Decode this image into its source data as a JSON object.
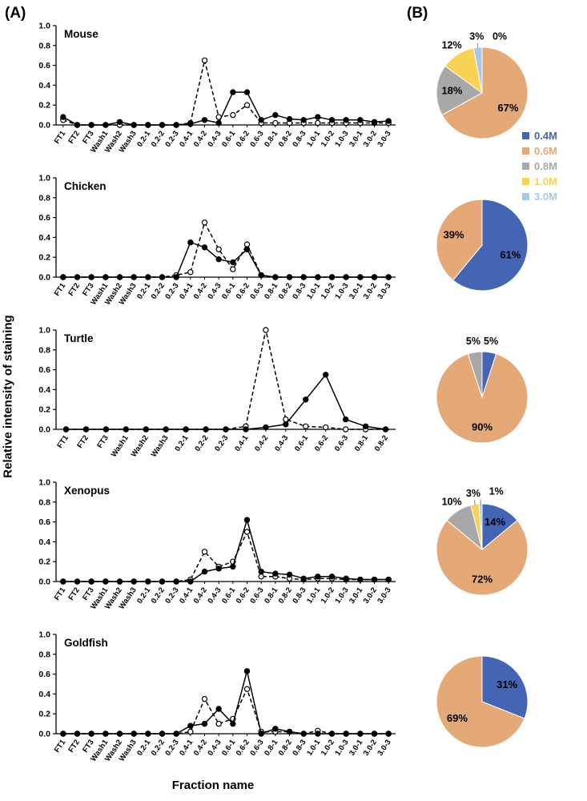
{
  "panel_a_label": "(A)",
  "panel_b_label": "(B)",
  "y_axis_label": "Relative intensity of staining",
  "x_axis_label": "Fraction name",
  "legend": {
    "items": [
      {
        "label": "0.4M",
        "color": "#4464B4"
      },
      {
        "label": "0.6M",
        "color": "#E5A877"
      },
      {
        "label": "0.8M",
        "color": "#A8A8A8"
      },
      {
        "label": "1.0M",
        "color": "#F7D254"
      },
      {
        "label": "3.0M",
        "color": "#A9C8E8"
      }
    ]
  },
  "chart_data": [
    {
      "type": "line",
      "name": "Mouse",
      "ylim": [
        0,
        1.0
      ],
      "y_tick_step": 0.2,
      "categories": [
        "FT1",
        "FT2",
        "FT3",
        "Wash1",
        "Wash2",
        "Wash3",
        "0.2-1",
        "0.2-2",
        "0.2-3",
        "0.4-1",
        "0.4-2",
        "0.4-3",
        "0.6-1",
        "0.6-2",
        "0.6-3",
        "0.8-1",
        "0.8-2",
        "0.8-3",
        "1.0-1",
        "1.0-2",
        "1.0-3",
        "3.0-1",
        "3.0-2",
        "3.0-3"
      ],
      "series": [
        {
          "name": "dashed (open circles)",
          "line_style": "dashed",
          "marker": "open-circle",
          "values": [
            0.05,
            0,
            0,
            0,
            0,
            0,
            0,
            0,
            0,
            0.02,
            0.65,
            0.08,
            0.1,
            0.2,
            0.02,
            0.02,
            0.02,
            0.02,
            0.02,
            0.02,
            0.02,
            0.02,
            0.02,
            0.02
          ]
        },
        {
          "name": "solid (filled circles)",
          "line_style": "solid",
          "marker": "filled-circle",
          "values": [
            0.08,
            0,
            0,
            0,
            0.03,
            0,
            0,
            0,
            0,
            0.01,
            0.05,
            0.02,
            0.33,
            0.33,
            0.05,
            0.1,
            0.06,
            0.05,
            0.08,
            0.05,
            0.05,
            0.05,
            0.03,
            0.04
          ]
        }
      ]
    },
    {
      "type": "line",
      "name": "Chicken",
      "ylim": [
        0,
        1.0
      ],
      "y_tick_step": 0.2,
      "categories": [
        "FT1",
        "FT2",
        "FT3",
        "Wash1",
        "Wash2",
        "Wash3",
        "0.2-1",
        "0.2-2",
        "0.2-3",
        "0.4-1",
        "0.4-2",
        "0.4-3",
        "0.6-1",
        "0.6-2",
        "0.6-3",
        "0.8-1",
        "0.8-2",
        "0.8-3",
        "1.0-1",
        "1.0-2",
        "1.0-3",
        "3.0-1",
        "3.0-2",
        "3.0-3"
      ],
      "series": [
        {
          "name": "dashed (open circles)",
          "line_style": "dashed",
          "marker": "open-circle",
          "values": [
            0,
            0,
            0,
            0,
            0,
            0,
            0,
            0,
            0.02,
            0.05,
            0.55,
            0.28,
            0.08,
            0.33,
            0.02,
            0,
            0,
            0,
            0,
            0,
            0,
            0,
            0,
            0
          ]
        },
        {
          "name": "solid (filled circles)",
          "line_style": "solid",
          "marker": "filled-circle",
          "values": [
            0,
            0,
            0,
            0,
            0,
            0,
            0,
            0,
            0,
            0.35,
            0.3,
            0.18,
            0.15,
            0.28,
            0.02,
            0,
            0,
            0,
            0,
            0,
            0,
            0,
            0,
            0
          ]
        }
      ]
    },
    {
      "type": "line",
      "name": "Turtle",
      "ylim": [
        0,
        1.0
      ],
      "y_tick_step": 0.2,
      "categories": [
        "FT1",
        "FT2",
        "FT3",
        "Wash1",
        "Wash2",
        "Wash3",
        "0.2-1",
        "0.2-2",
        "0.2-3",
        "0.4-1",
        "0.4-2",
        "0.4-3",
        "0.6-1",
        "0.6-2",
        "0.6-3",
        "0.8-1",
        "0.8-2"
      ],
      "series": [
        {
          "name": "dashed (open circles)",
          "line_style": "dashed",
          "marker": "open-circle",
          "values": [
            0,
            0,
            0,
            0,
            0,
            0,
            0,
            0,
            0,
            0.03,
            1.0,
            0.1,
            0.03,
            0.02,
            0,
            0,
            0
          ]
        },
        {
          "name": "solid (filled circles)",
          "line_style": "solid",
          "marker": "filled-circle",
          "values": [
            0,
            0,
            0,
            0,
            0,
            0,
            0,
            0,
            0,
            0,
            0.02,
            0.05,
            0.3,
            0.55,
            0.1,
            0.03,
            0
          ]
        }
      ]
    },
    {
      "type": "line",
      "name": "Xenopus",
      "ylim": [
        0,
        1.0
      ],
      "y_tick_step": 0.2,
      "categories": [
        "FT1",
        "FT2",
        "FT3",
        "Wash1",
        "Wash2",
        "Wash3",
        "0.2-1",
        "0.2-2",
        "0.2-3",
        "0.4-1",
        "0.4-2",
        "0.4-3",
        "0.6-1",
        "0.6-2",
        "0.6-3",
        "0.8-1",
        "0.8-2",
        "0.8-3",
        "1.0-1",
        "1.0-2",
        "1.0-3",
        "3.0-1",
        "3.0-2",
        "3.0-3"
      ],
      "series": [
        {
          "name": "dashed (open circles)",
          "line_style": "dashed",
          "marker": "open-circle",
          "values": [
            0,
            0,
            0,
            0,
            0,
            0,
            0,
            0,
            0,
            0.02,
            0.3,
            0.15,
            0.2,
            0.5,
            0.05,
            0.05,
            0.03,
            0.02,
            0.03,
            0.03,
            0.02,
            0.02,
            0.02,
            0.02
          ]
        },
        {
          "name": "solid (filled circles)",
          "line_style": "solid",
          "marker": "filled-circle",
          "values": [
            0,
            0,
            0,
            0,
            0,
            0,
            0,
            0,
            0,
            0,
            0.1,
            0.13,
            0.15,
            0.62,
            0.1,
            0.08,
            0.07,
            0.03,
            0.05,
            0.05,
            0.03,
            0.02,
            0.02,
            0.02
          ]
        }
      ]
    },
    {
      "type": "line",
      "name": "Goldfish",
      "ylim": [
        0,
        1.0
      ],
      "y_tick_step": 0.2,
      "categories": [
        "FT1",
        "FT2",
        "FT3",
        "Wash1",
        "Wash2",
        "Wash3",
        "0.2-1",
        "0.2-2",
        "0.2-3",
        "0.4-1",
        "0.4-2",
        "0.4-3",
        "0.6-1",
        "0.6-2",
        "0.6-3",
        "0.8-1",
        "0.8-2",
        "0.8-3",
        "1.0-1",
        "1.0-2",
        "1.0-3",
        "3.0-1",
        "3.0-2",
        "3.0-3"
      ],
      "series": [
        {
          "name": "dashed (open circles)",
          "line_style": "dashed",
          "marker": "open-circle",
          "values": [
            0,
            0,
            0,
            0,
            0,
            0,
            0,
            0,
            0,
            0.02,
            0.35,
            0.1,
            0.15,
            0.45,
            0.02,
            0.02,
            0.02,
            0,
            0.03,
            0,
            0,
            0,
            0,
            0
          ]
        },
        {
          "name": "solid (filled circles)",
          "line_style": "solid",
          "marker": "filled-circle",
          "values": [
            0,
            0,
            0,
            0,
            0,
            0,
            0,
            0,
            0,
            0.08,
            0.1,
            0.25,
            0.1,
            0.63,
            0,
            0.05,
            0.02,
            0,
            0,
            0,
            0,
            0,
            0,
            0
          ]
        }
      ]
    },
    {
      "type": "pie",
      "name": "Mouse",
      "slices": [
        {
          "label": "0.4M",
          "pct": 0,
          "label_visible": true
        },
        {
          "label": "0.6M",
          "pct": 67,
          "label_visible": true
        },
        {
          "label": "0.8M",
          "pct": 18,
          "label_visible": true
        },
        {
          "label": "1.0M",
          "pct": 12,
          "label_visible": true
        },
        {
          "label": "3.0M",
          "pct": 3,
          "label_visible": true
        }
      ]
    },
    {
      "type": "pie",
      "name": "Chicken",
      "slices": [
        {
          "label": "0.4M",
          "pct": 61,
          "label_visible": true
        },
        {
          "label": "0.6M",
          "pct": 39,
          "label_visible": true
        },
        {
          "label": "0.8M",
          "pct": 0,
          "label_visible": false
        },
        {
          "label": "1.0M",
          "pct": 0,
          "label_visible": false
        },
        {
          "label": "3.0M",
          "pct": 0,
          "label_visible": false
        }
      ]
    },
    {
      "type": "pie",
      "name": "Turtle",
      "slices": [
        {
          "label": "0.4M",
          "pct": 5,
          "label_visible": true
        },
        {
          "label": "0.6M",
          "pct": 90,
          "label_visible": true
        },
        {
          "label": "0.8M",
          "pct": 5,
          "label_visible": true
        },
        {
          "label": "1.0M",
          "pct": 0,
          "label_visible": false
        },
        {
          "label": "3.0M",
          "pct": 0,
          "label_visible": false
        }
      ]
    },
    {
      "type": "pie",
      "name": "Xenopus",
      "slices": [
        {
          "label": "0.4M",
          "pct": 14,
          "label_visible": true
        },
        {
          "label": "0.6M",
          "pct": 72,
          "label_visible": true
        },
        {
          "label": "0.8M",
          "pct": 10,
          "label_visible": true
        },
        {
          "label": "1.0M",
          "pct": 3,
          "label_visible": true
        },
        {
          "label": "3.0M",
          "pct": 1,
          "label_visible": true
        }
      ]
    },
    {
      "type": "pie",
      "name": "Goldfish",
      "slices": [
        {
          "label": "0.4M",
          "pct": 31,
          "label_visible": true
        },
        {
          "label": "0.6M",
          "pct": 69,
          "label_visible": true
        },
        {
          "label": "0.8M",
          "pct": 0,
          "label_visible": false
        },
        {
          "label": "1.0M",
          "pct": 0,
          "label_visible": false
        },
        {
          "label": "3.0M",
          "pct": 0,
          "label_visible": false
        }
      ]
    }
  ]
}
